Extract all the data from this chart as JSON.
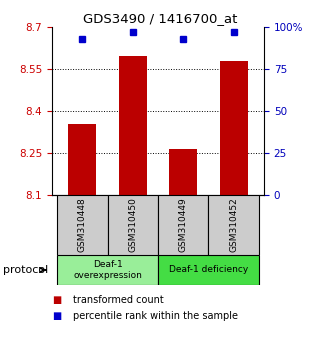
{
  "title": "GDS3490 / 1416700_at",
  "samples": [
    "GSM310448",
    "GSM310450",
    "GSM310449",
    "GSM310452"
  ],
  "transformed_counts": [
    8.355,
    8.595,
    8.265,
    8.58
  ],
  "percentile_ranks": [
    93,
    97,
    93,
    97
  ],
  "y_min": 8.1,
  "y_max": 8.7,
  "y_ticks": [
    8.1,
    8.25,
    8.4,
    8.55,
    8.7
  ],
  "y2_ticks": [
    0,
    25,
    50,
    75,
    100
  ],
  "bar_color": "#bb0000",
  "dot_color": "#0000cc",
  "group_colors": [
    "#99ee99",
    "#44dd44"
  ],
  "gray_color": "#cccccc",
  "protocol_label": "protocol",
  "legend_items": [
    {
      "color": "#bb0000",
      "label": "transformed count"
    },
    {
      "color": "#0000cc",
      "label": "percentile rank within the sample"
    }
  ],
  "tick_color_left": "#cc0000",
  "tick_color_right": "#0000bb",
  "bar_width": 0.55,
  "group_labels": [
    "Deaf-1\noverexpression",
    "Deaf-1 deficiency"
  ]
}
